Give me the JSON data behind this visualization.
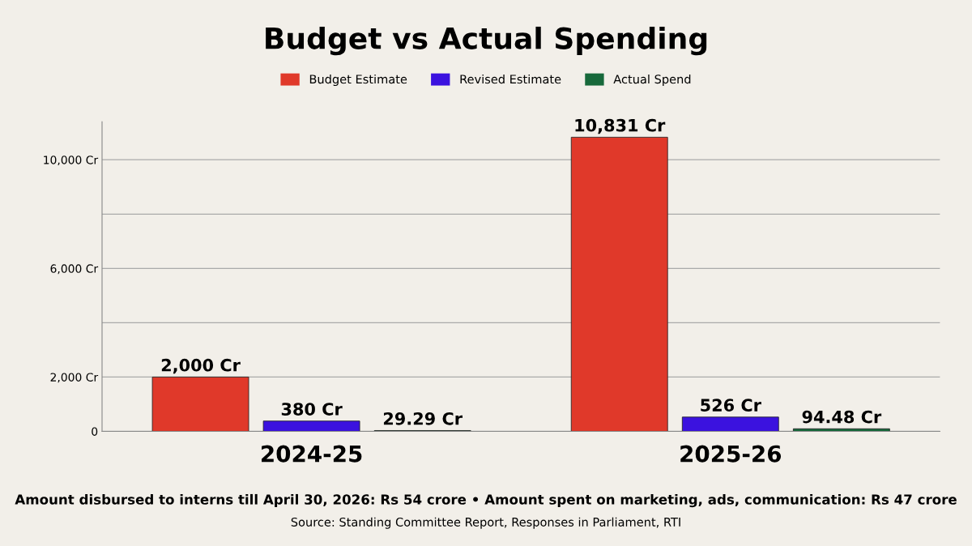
{
  "chart_data": {
    "type": "bar",
    "title": "Budget vs Actual Spending",
    "categories": [
      "2024-25",
      "2025-26"
    ],
    "series": [
      {
        "name": "Budget Estimate",
        "color": "#e0392a",
        "values": [
          2000,
          10831
        ],
        "value_labels": [
          "2,000 Cr",
          "10,831 Cr"
        ]
      },
      {
        "name": "Revised Estimate",
        "color": "#3b12df",
        "values": [
          380,
          526
        ],
        "value_labels": [
          "380 Cr",
          "526 Cr"
        ]
      },
      {
        "name": "Actual Spend",
        "color": "#17693b",
        "values": [
          29.29,
          94.48
        ],
        "value_labels": [
          "29.29 Cr",
          "94.48 Cr"
        ]
      }
    ],
    "ylim": [
      0,
      11400
    ],
    "yticks": [
      {
        "value": 0,
        "label": "0"
      },
      {
        "value": 2000,
        "label": "2,000 Cr"
      },
      {
        "value": 4000,
        "label": null
      },
      {
        "value": 6000,
        "label": "6,000 Cr"
      },
      {
        "value": 8000,
        "label": null
      },
      {
        "value": 10000,
        "label": "10,000 Cr"
      }
    ],
    "grid": "y",
    "legend": "top",
    "annotations": [
      "Amount disbursed to interns till April 30, 2026: Rs 54 crore • Amount spent on marketing, ads, communication: Rs 47 crore",
      "Source: Standing Committee Report, Responses in Parliament, RTI"
    ]
  }
}
